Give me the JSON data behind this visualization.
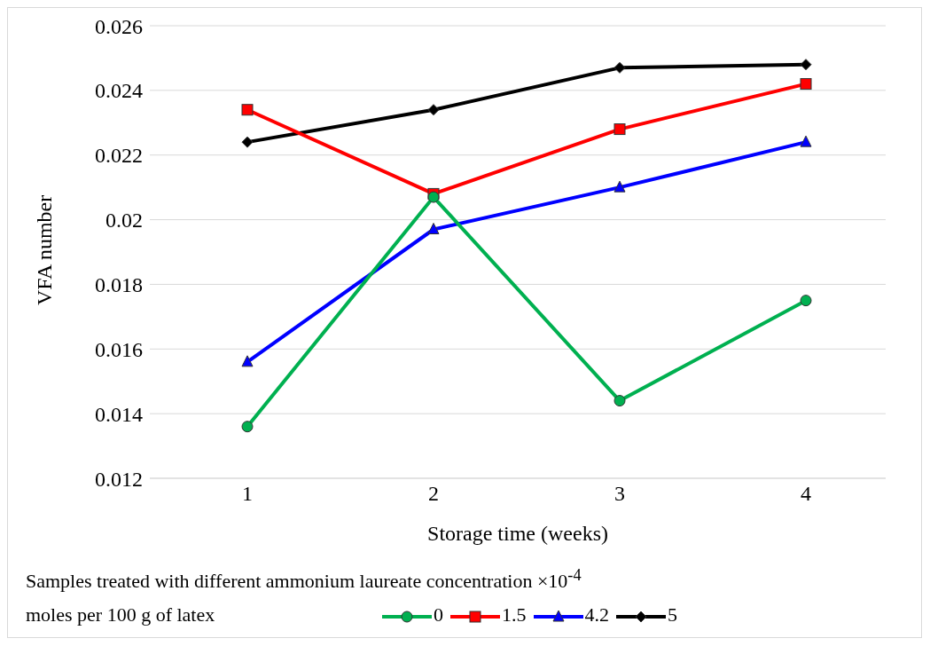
{
  "chart_data": {
    "type": "line",
    "xlabel": "Storage time (weeks)",
    "ylabel": "VFA number",
    "legend_title": "Samples treated with different ammonium laureate concentration ×10$^{-4}$ moles per 100 g of latex",
    "categories": [
      "1",
      "2",
      "3",
      "4"
    ],
    "series": [
      {
        "name": "0",
        "color": "#00b050",
        "marker": "circle",
        "values": [
          0.0136,
          0.0207,
          0.0144,
          0.0175
        ]
      },
      {
        "name": "1.5",
        "color": "#ff0000",
        "marker": "square",
        "values": [
          0.0234,
          0.0208,
          0.0228,
          0.0242
        ]
      },
      {
        "name": "4.2",
        "color": "#0000ff",
        "marker": "triangle",
        "values": [
          0.0156,
          0.0197,
          0.021,
          0.0224
        ]
      },
      {
        "name": "5",
        "color": "#000000",
        "marker": "diamond",
        "values": [
          0.0224,
          0.0234,
          0.0247,
          0.0248
        ]
      }
    ],
    "ylim": [
      0.012,
      0.026
    ],
    "yticks": [
      0.012,
      0.014,
      0.016,
      0.018,
      0.02,
      0.022,
      0.024,
      0.026
    ],
    "grid": "y",
    "legend": "bottom",
    "line_style": "solid"
  }
}
